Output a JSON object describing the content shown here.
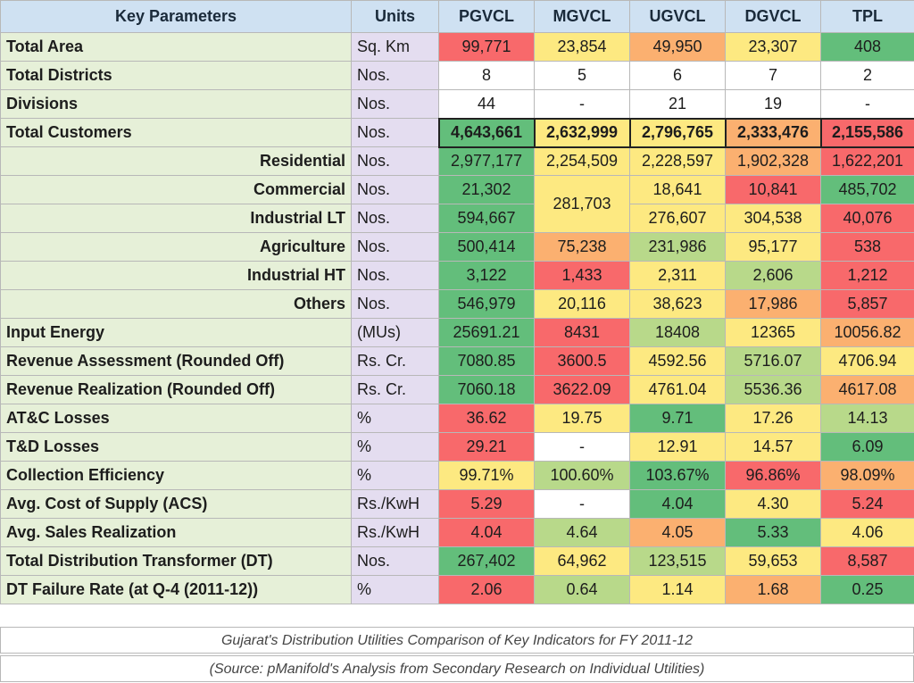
{
  "headers": [
    "Key Parameters",
    "Units",
    "PGVCL",
    "MGVCL",
    "UGVCL",
    "DGVCL",
    "TPL"
  ],
  "palette": {
    "green": "#63be7b",
    "light_green": "#b8d98a",
    "yellow": "#fde981",
    "orange": "#fbb070",
    "red": "#f8696b",
    "white": "#ffffff"
  },
  "rows": [
    {
      "label": "Total Area",
      "unit": "Sq. Km",
      "cells": [
        {
          "v": "99,771",
          "c": "red"
        },
        {
          "v": "23,854",
          "c": "yellow"
        },
        {
          "v": "49,950",
          "c": "orange"
        },
        {
          "v": "23,307",
          "c": "yellow"
        },
        {
          "v": "408",
          "c": "green"
        }
      ]
    },
    {
      "label": "Total Districts",
      "unit": "Nos.",
      "cells": [
        {
          "v": "8",
          "c": "white"
        },
        {
          "v": "5",
          "c": "white"
        },
        {
          "v": "6",
          "c": "white"
        },
        {
          "v": "7",
          "c": "white"
        },
        {
          "v": "2",
          "c": "white"
        }
      ]
    },
    {
      "label": "Divisions",
      "unit": "Nos.",
      "cells": [
        {
          "v": "44",
          "c": "white"
        },
        {
          "v": "-",
          "c": "white"
        },
        {
          "v": "21",
          "c": "white"
        },
        {
          "v": "19",
          "c": "white"
        },
        {
          "v": "-",
          "c": "white"
        }
      ]
    },
    {
      "label": "Total Customers",
      "unit": "Nos.",
      "bold": true,
      "cells": [
        {
          "v": "4,643,661",
          "c": "green"
        },
        {
          "v": "2,632,999",
          "c": "yellow"
        },
        {
          "v": "2,796,765",
          "c": "yellow"
        },
        {
          "v": "2,333,476",
          "c": "orange"
        },
        {
          "v": "2,155,586",
          "c": "red"
        }
      ]
    },
    {
      "label": "Residential",
      "unit": "Nos.",
      "sub": true,
      "cells": [
        {
          "v": "2,977,177",
          "c": "green"
        },
        {
          "v": "2,254,509",
          "c": "yellow"
        },
        {
          "v": "2,228,597",
          "c": "yellow"
        },
        {
          "v": "1,902,328",
          "c": "orange"
        },
        {
          "v": "1,622,201",
          "c": "red"
        }
      ]
    },
    {
      "label": "Commercial",
      "unit": "Nos.",
      "sub": true,
      "cells": [
        {
          "v": "21,302",
          "c": "green"
        },
        {
          "v": "281,703",
          "c": "yellow",
          "rowspan": 2
        },
        {
          "v": "18,641",
          "c": "yellow"
        },
        {
          "v": "10,841",
          "c": "red"
        },
        {
          "v": "485,702",
          "c": "green"
        }
      ]
    },
    {
      "label": "Industrial LT",
      "unit": "Nos.",
      "sub": true,
      "cells": [
        {
          "v": "594,667",
          "c": "green"
        },
        {
          "v": "276,607",
          "c": "yellow"
        },
        {
          "v": "304,538",
          "c": "yellow"
        },
        {
          "v": "40,076",
          "c": "red"
        }
      ]
    },
    {
      "label": "Agriculture",
      "unit": "Nos.",
      "sub": true,
      "cells": [
        {
          "v": "500,414",
          "c": "green"
        },
        {
          "v": "75,238",
          "c": "orange"
        },
        {
          "v": "231,986",
          "c": "light_green"
        },
        {
          "v": "95,177",
          "c": "yellow"
        },
        {
          "v": "538",
          "c": "red"
        }
      ]
    },
    {
      "label": "Industrial HT",
      "unit": "Nos.",
      "sub": true,
      "cells": [
        {
          "v": "3,122",
          "c": "green"
        },
        {
          "v": "1,433",
          "c": "red"
        },
        {
          "v": "2,311",
          "c": "yellow"
        },
        {
          "v": "2,606",
          "c": "light_green"
        },
        {
          "v": "1,212",
          "c": "red"
        }
      ]
    },
    {
      "label": "Others",
      "unit": "Nos.",
      "sub": true,
      "cells": [
        {
          "v": "546,979",
          "c": "green"
        },
        {
          "v": "20,116",
          "c": "yellow"
        },
        {
          "v": "38,623",
          "c": "yellow"
        },
        {
          "v": "17,986",
          "c": "orange"
        },
        {
          "v": "5,857",
          "c": "red"
        }
      ]
    },
    {
      "label": "Input Energy",
      "unit": "(MUs)",
      "cells": [
        {
          "v": "25691.21",
          "c": "green"
        },
        {
          "v": "8431",
          "c": "red"
        },
        {
          "v": "18408",
          "c": "light_green"
        },
        {
          "v": "12365",
          "c": "yellow"
        },
        {
          "v": "10056.82",
          "c": "orange"
        }
      ]
    },
    {
      "label": "Revenue Assessment (Rounded Off)",
      "unit": "Rs. Cr.",
      "cells": [
        {
          "v": "7080.85",
          "c": "green"
        },
        {
          "v": "3600.5",
          "c": "red"
        },
        {
          "v": "4592.56",
          "c": "yellow"
        },
        {
          "v": "5716.07",
          "c": "light_green"
        },
        {
          "v": "4706.94",
          "c": "yellow"
        }
      ]
    },
    {
      "label": "Revenue Realization (Rounded Off)",
      "unit": "Rs. Cr.",
      "cells": [
        {
          "v": "7060.18",
          "c": "green"
        },
        {
          "v": "3622.09",
          "c": "red"
        },
        {
          "v": "4761.04",
          "c": "yellow"
        },
        {
          "v": "5536.36",
          "c": "light_green"
        },
        {
          "v": "4617.08",
          "c": "orange"
        }
      ]
    },
    {
      "label": "AT&C Losses",
      "unit": "%",
      "cells": [
        {
          "v": "36.62",
          "c": "red"
        },
        {
          "v": "19.75",
          "c": "yellow"
        },
        {
          "v": "9.71",
          "c": "green"
        },
        {
          "v": "17.26",
          "c": "yellow"
        },
        {
          "v": "14.13",
          "c": "light_green"
        }
      ]
    },
    {
      "label": "T&D Losses",
      "unit": "%",
      "cells": [
        {
          "v": "29.21",
          "c": "red"
        },
        {
          "v": "-",
          "c": "white"
        },
        {
          "v": "12.91",
          "c": "yellow"
        },
        {
          "v": "14.57",
          "c": "yellow"
        },
        {
          "v": "6.09",
          "c": "green"
        }
      ]
    },
    {
      "label": "Collection Efficiency",
      "unit": "%",
      "cells": [
        {
          "v": "99.71%",
          "c": "yellow"
        },
        {
          "v": "100.60%",
          "c": "light_green"
        },
        {
          "v": "103.67%",
          "c": "green"
        },
        {
          "v": "96.86%",
          "c": "red"
        },
        {
          "v": "98.09%",
          "c": "orange"
        }
      ]
    },
    {
      "label": "Avg. Cost of Supply (ACS)",
      "unit": "Rs./KwH",
      "cells": [
        {
          "v": "5.29",
          "c": "red"
        },
        {
          "v": "-",
          "c": "white"
        },
        {
          "v": "4.04",
          "c": "green"
        },
        {
          "v": "4.30",
          "c": "yellow"
        },
        {
          "v": "5.24",
          "c": "red"
        }
      ]
    },
    {
      "label": "Avg. Sales Realization",
      "unit": "Rs./KwH",
      "cells": [
        {
          "v": "4.04",
          "c": "red"
        },
        {
          "v": "4.64",
          "c": "light_green"
        },
        {
          "v": "4.05",
          "c": "orange"
        },
        {
          "v": "5.33",
          "c": "green"
        },
        {
          "v": "4.06",
          "c": "yellow"
        }
      ]
    },
    {
      "label": "Total Distribution Transformer (DT)",
      "unit": "Nos.",
      "cells": [
        {
          "v": "267,402",
          "c": "green"
        },
        {
          "v": "64,962",
          "c": "yellow"
        },
        {
          "v": "123,515",
          "c": "light_green"
        },
        {
          "v": "59,653",
          "c": "yellow"
        },
        {
          "v": "8,587",
          "c": "red"
        }
      ]
    },
    {
      "label": "DT Failure Rate (at Q-4 (2011-12))",
      "unit": "%",
      "cells": [
        {
          "v": "2.06",
          "c": "red"
        },
        {
          "v": "0.64",
          "c": "light_green"
        },
        {
          "v": "1.14",
          "c": "yellow"
        },
        {
          "v": "1.68",
          "c": "orange"
        },
        {
          "v": "0.25",
          "c": "green"
        }
      ]
    }
  ],
  "caption": "Gujarat's Distribution Utilities Comparison of Key Indicators for FY 2011-12",
  "source": "(Source: pManifold's Analysis from Secondary Research on Individual Utilities)"
}
